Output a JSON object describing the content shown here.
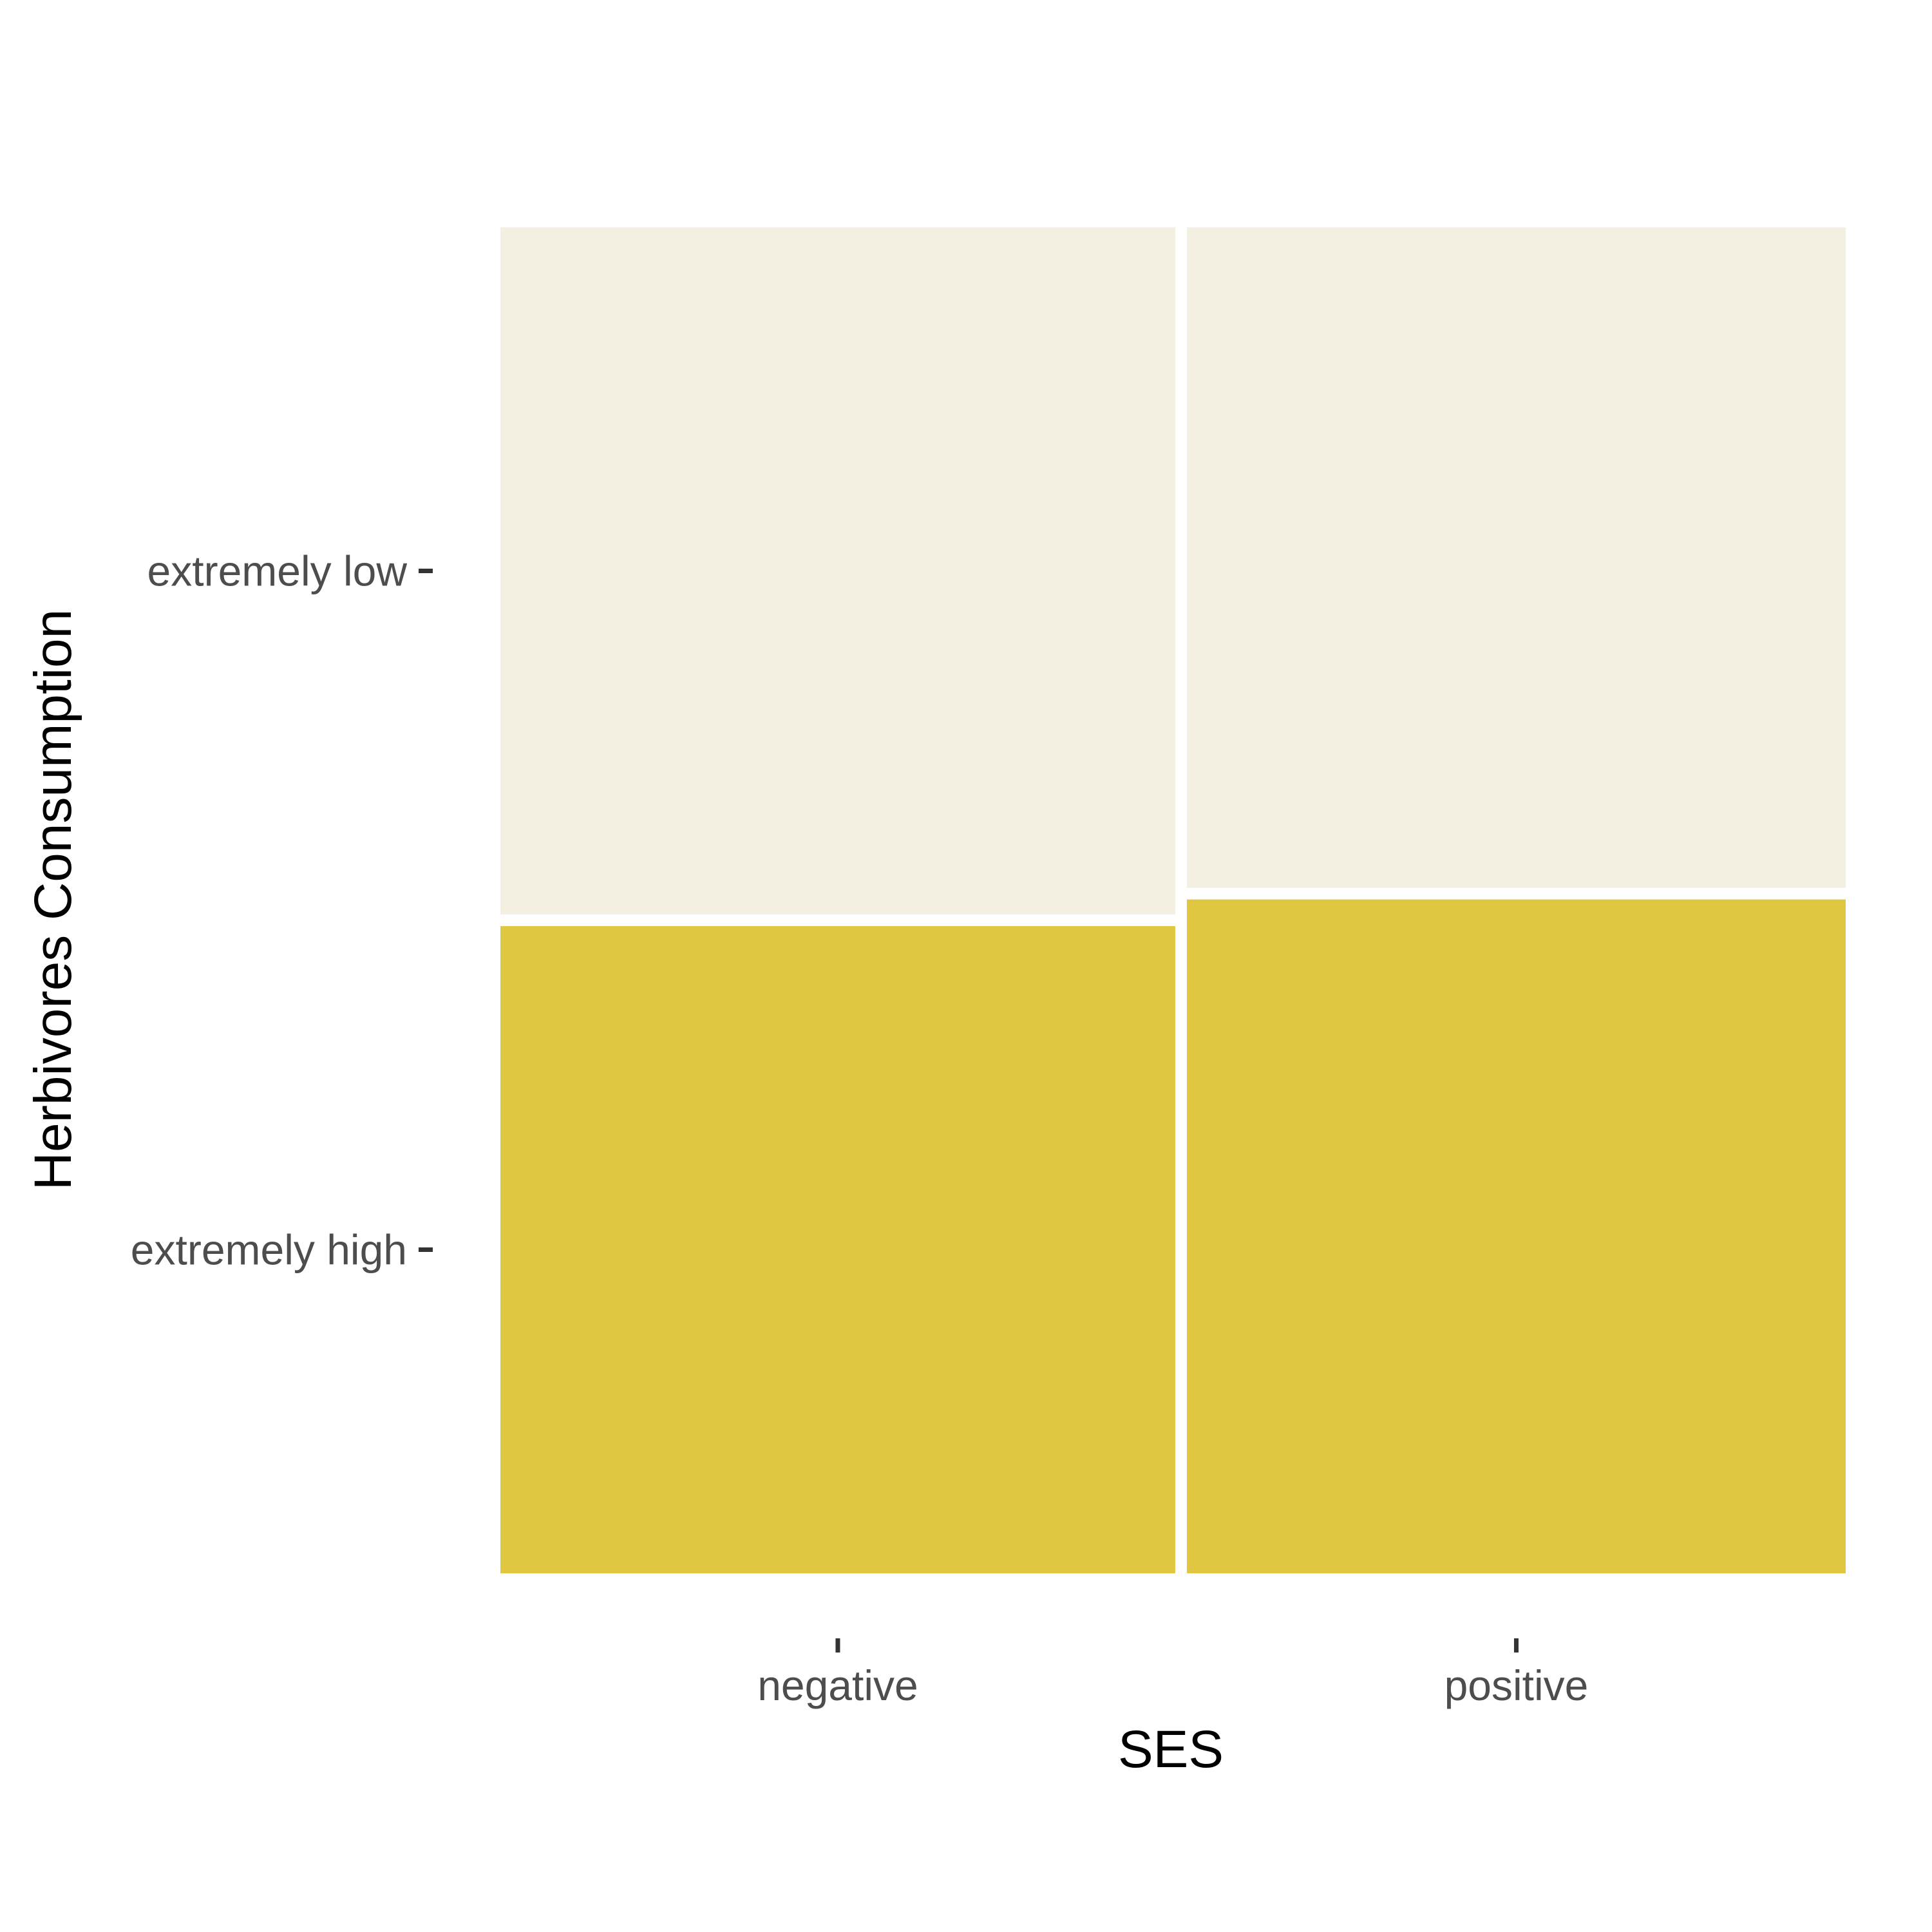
{
  "chart_data": {
    "type": "mosaic",
    "xlabel": "SES",
    "ylabel": "Herbivores Consumption",
    "x_categories": [
      "negative",
      "positive"
    ],
    "y_categories": [
      "extremely high",
      "extremely low"
    ],
    "x_widths": [
      0.506,
      0.494
    ],
    "proportions": {
      "negative": {
        "extremely high": 0.485,
        "extremely low": 0.515
      },
      "positive": {
        "extremely high": 0.505,
        "extremely low": 0.495
      }
    },
    "colors": {
      "extremely high": "#e0c742",
      "extremely low": "#f3efe1"
    },
    "legend": "none",
    "grid": false
  }
}
